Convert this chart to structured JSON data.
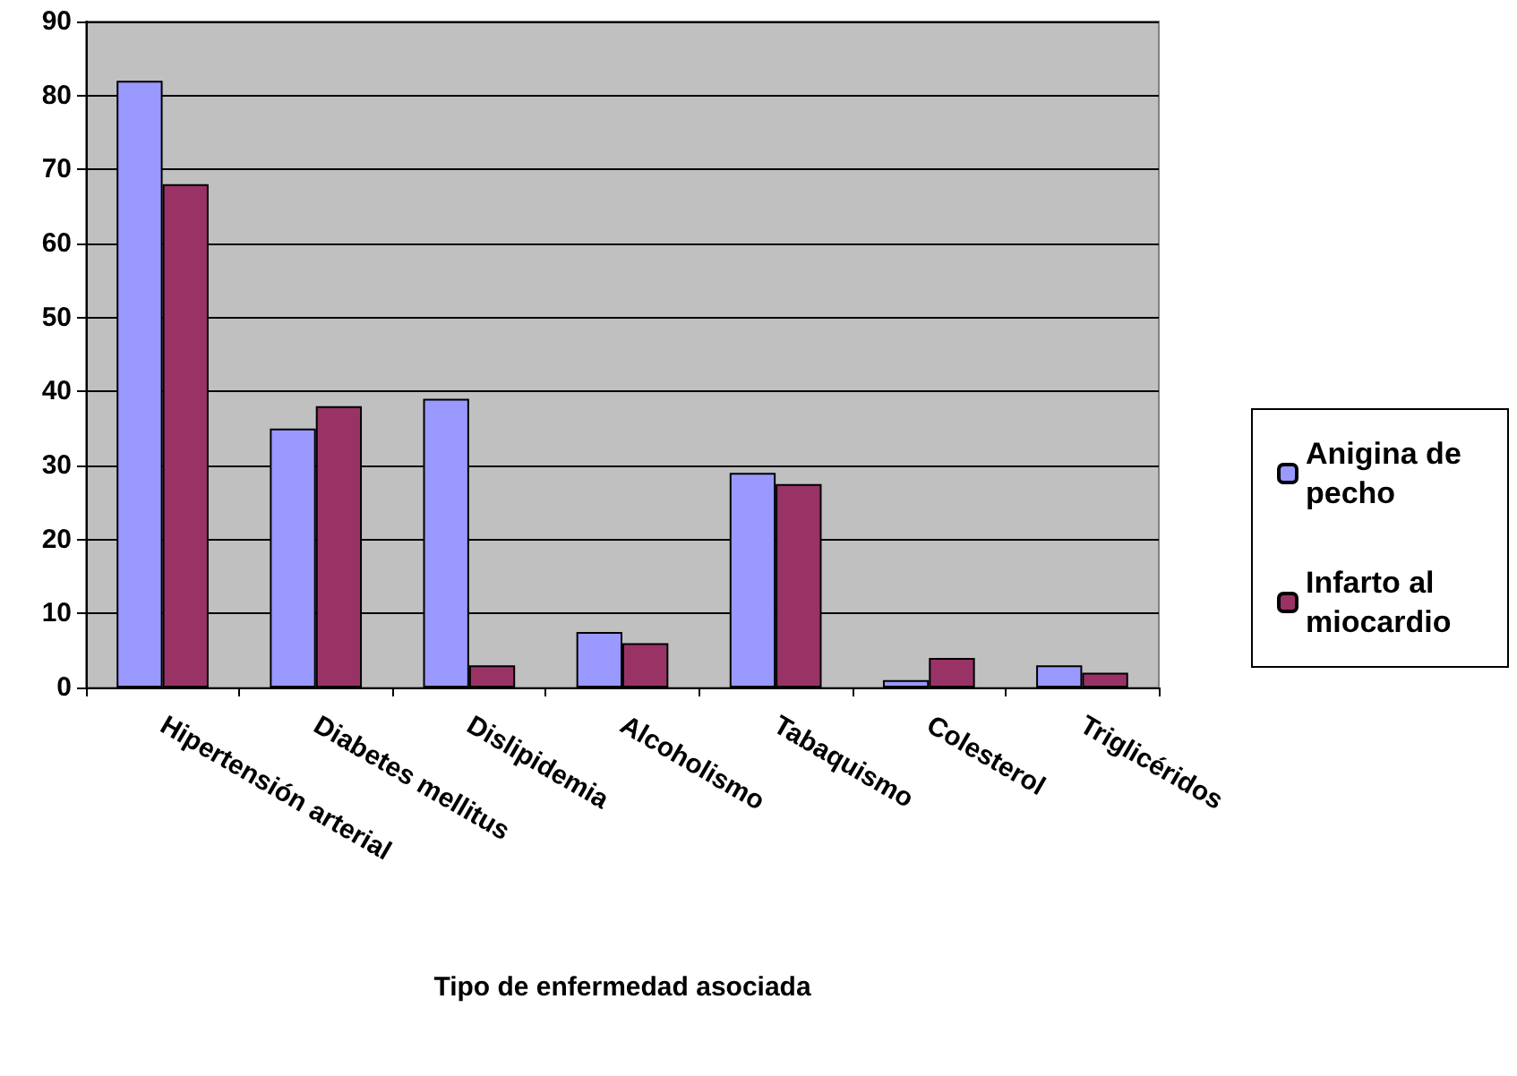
{
  "chart_data": {
    "type": "bar",
    "xlabel": "Tipo de enfermedad asociada",
    "categories": [
      "Hipertensión arterial",
      "Diabetes mellitus",
      "Dislipidemia",
      "Alcoholismo",
      "Tabaquismo",
      "Colesterol",
      "Triglicéridos"
    ],
    "series": [
      {
        "name": "Anigina de pecho",
        "color": "#9999ff",
        "values": [
          82,
          35,
          39,
          7.5,
          29,
          1,
          3
        ]
      },
      {
        "name": "Infarto al miocardio",
        "color": "#993366",
        "values": [
          68,
          38,
          3,
          6,
          27.5,
          4,
          2
        ]
      }
    ],
    "ylim": [
      0,
      90
    ],
    "yticks": [
      0,
      10,
      20,
      30,
      40,
      50,
      60,
      70,
      80,
      90
    ],
    "grid": "y",
    "legend": "right"
  }
}
